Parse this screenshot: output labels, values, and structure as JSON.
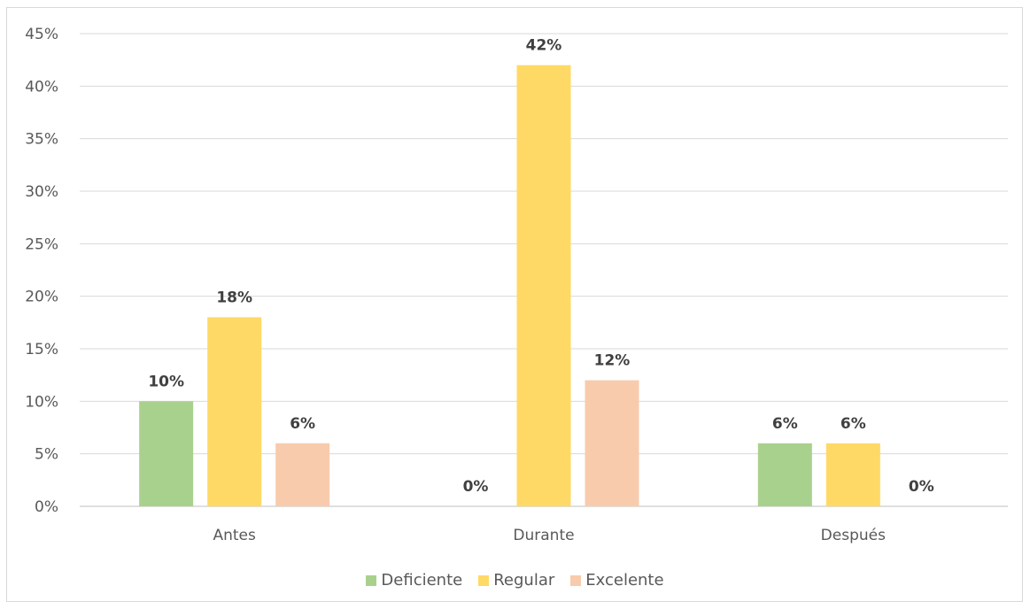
{
  "chart_data": {
    "type": "bar",
    "categories": [
      "Antes",
      "Durante",
      "Después"
    ],
    "series": [
      {
        "name": "Deficiente",
        "values": [
          10,
          0,
          6
        ],
        "labels": [
          "10%",
          "0%",
          "6%"
        ],
        "color": "#a9d18e"
      },
      {
        "name": "Regular",
        "values": [
          18,
          42,
          6
        ],
        "labels": [
          "18%",
          "42%",
          "6%"
        ],
        "color": "#ffd966"
      },
      {
        "name": "Excelente",
        "values": [
          6,
          12,
          0
        ],
        "labels": [
          "6%",
          "12%",
          "0%"
        ],
        "color": "#f8cbad"
      }
    ],
    "y_ticks": [
      "0%",
      "5%",
      "10%",
      "15%",
      "20%",
      "25%",
      "30%",
      "35%",
      "40%",
      "45%"
    ],
    "ylim": [
      0,
      45
    ],
    "grid": true,
    "legend_position": "bottom"
  }
}
